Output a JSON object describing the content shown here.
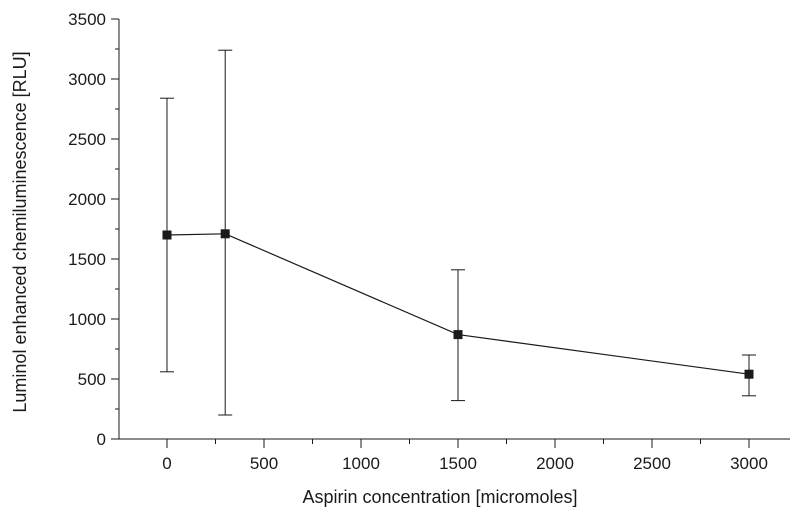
{
  "chart_data": {
    "type": "line",
    "title": "",
    "xlabel": "Aspirin concentration [micromoles]",
    "ylabel": "Luminol enhanced chemiluminescence [RLU]",
    "xlim": [
      -250,
      3200
    ],
    "ylim": [
      0,
      3500
    ],
    "x_ticks": [
      0,
      500,
      1000,
      1500,
      2000,
      2500,
      3000
    ],
    "y_ticks": [
      0,
      500,
      1000,
      1500,
      2000,
      2500,
      3000,
      3500
    ],
    "x_tick_labels": [
      "0",
      "500",
      "1000",
      "1500",
      "2000",
      "2500",
      "3000"
    ],
    "y_tick_labels": [
      "0",
      "500",
      "1000",
      "1500",
      "2000",
      "2500",
      "3000",
      "3500"
    ],
    "grid": false,
    "legend": "none",
    "marker": "square",
    "color": "#1a1a1a",
    "series": [
      {
        "points": [
          {
            "x": 0,
            "y": 1700,
            "err_low": 560,
            "err_high": 2840
          },
          {
            "x": 300,
            "y": 1710,
            "err_low": 200,
            "err_high": 3240
          },
          {
            "x": 1500,
            "y": 870,
            "err_low": 320,
            "err_high": 1410
          },
          {
            "x": 3000,
            "y": 540,
            "err_low": 360,
            "err_high": 700
          }
        ]
      }
    ]
  }
}
